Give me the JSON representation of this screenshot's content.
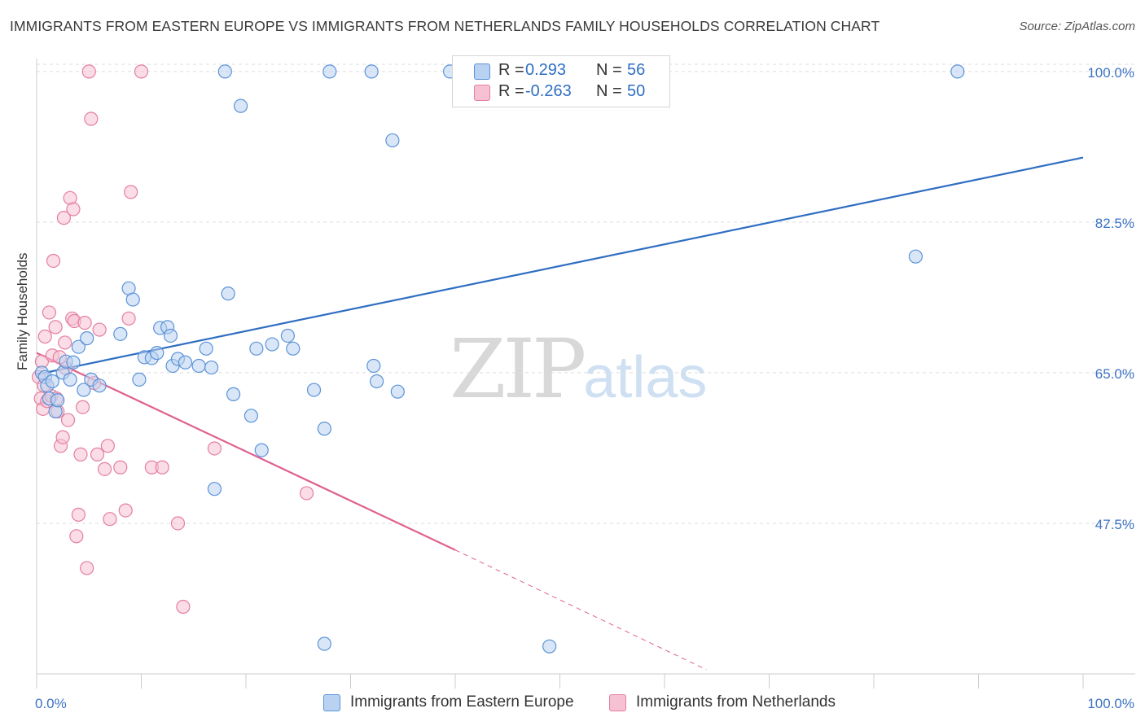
{
  "title": "IMMIGRANTS FROM EASTERN EUROPE VS IMMIGRANTS FROM NETHERLANDS FAMILY HOUSEHOLDS CORRELATION CHART",
  "source": "Source: ZipAtlas.com",
  "watermark": {
    "zip": "ZIP",
    "atlas": "atlas"
  },
  "legend": {
    "rows": [
      {
        "r_label": "R =",
        "r_value": "0.293",
        "n_label": "N =",
        "n_value": "56"
      },
      {
        "r_label": "R =",
        "r_value": "-0.263",
        "n_label": "N =",
        "n_value": "50"
      }
    ]
  },
  "colors": {
    "blue": "#5b93d8",
    "blue_fill": "#b9d2f1",
    "pink": "#e57ea0",
    "pink_fill": "#f6c1d2",
    "blue_line": "#2f6ec2",
    "pink_line": "#e0608f",
    "tick_text": "#3b72c4",
    "grid": "#dedede"
  },
  "chart_data": {
    "type": "scatter",
    "title": "IMMIGRANTS FROM EASTERN EUROPE VS IMMIGRANTS FROM NETHERLANDS FAMILY HOUSEHOLDS CORRELATION CHART",
    "xlabel": "",
    "ylabel": "Family Households",
    "xlim": [
      0,
      100
    ],
    "ylim": [
      30,
      101.5
    ],
    "x_tick_labels": [
      "0.0%",
      "100.0%"
    ],
    "y_ticks": [
      47.5,
      65.0,
      82.5,
      100.0
    ],
    "y_tick_labels": [
      "47.5%",
      "65.0%",
      "82.5%",
      "100.0%"
    ],
    "legend_position": "top-center",
    "series": [
      {
        "name": "Immigrants from Eastern Europe",
        "color": "blue",
        "R": 0.293,
        "N": 56,
        "trend": {
          "x": [
            0,
            100
          ],
          "y": [
            64.8,
            90.0
          ]
        },
        "points": [
          [
            0.5,
            65.0
          ],
          [
            0.8,
            64.5
          ],
          [
            1.0,
            63.5
          ],
          [
            1.2,
            62.0
          ],
          [
            1.5,
            64.0
          ],
          [
            1.8,
            60.5
          ],
          [
            2.0,
            61.8
          ],
          [
            2.5,
            65.0
          ],
          [
            2.8,
            66.3
          ],
          [
            3.2,
            64.2
          ],
          [
            3.5,
            66.2
          ],
          [
            4.0,
            68.0
          ],
          [
            4.5,
            63.0
          ],
          [
            4.8,
            69.0
          ],
          [
            5.2,
            64.2
          ],
          [
            6.0,
            63.5
          ],
          [
            8.0,
            69.5
          ],
          [
            8.8,
            74.8
          ],
          [
            9.2,
            73.5
          ],
          [
            9.8,
            64.2
          ],
          [
            10.3,
            66.8
          ],
          [
            11.0,
            66.7
          ],
          [
            11.5,
            67.3
          ],
          [
            11.8,
            70.2
          ],
          [
            12.5,
            70.3
          ],
          [
            12.8,
            69.3
          ],
          [
            13.0,
            65.8
          ],
          [
            13.5,
            66.6
          ],
          [
            14.2,
            66.2
          ],
          [
            15.5,
            65.8
          ],
          [
            16.2,
            67.8
          ],
          [
            16.7,
            65.6
          ],
          [
            17.0,
            51.5
          ],
          [
            18.0,
            100.0
          ],
          [
            18.3,
            74.2
          ],
          [
            18.8,
            62.5
          ],
          [
            19.5,
            96.0
          ],
          [
            20.5,
            60.0
          ],
          [
            21.0,
            67.8
          ],
          [
            21.5,
            56.0
          ],
          [
            22.5,
            68.3
          ],
          [
            24.0,
            69.3
          ],
          [
            24.5,
            67.8
          ],
          [
            26.5,
            63.0
          ],
          [
            27.5,
            58.5
          ],
          [
            27.5,
            33.5
          ],
          [
            28.0,
            100.0
          ],
          [
            32.0,
            100.0
          ],
          [
            32.2,
            65.8
          ],
          [
            32.5,
            64.0
          ],
          [
            34.0,
            92.0
          ],
          [
            34.5,
            62.8
          ],
          [
            39.5,
            100.0
          ],
          [
            49.0,
            33.2
          ],
          [
            84.0,
            78.5
          ],
          [
            88.0,
            100.0
          ]
        ]
      },
      {
        "name": "Immigrants from Netherlands",
        "color": "pink",
        "R": -0.263,
        "N": 50,
        "trend": {
          "x": [
            0,
            40
          ],
          "y": [
            67.3,
            44.4
          ]
        },
        "trend_dashed": {
          "x": [
            40,
            64
          ],
          "y": [
            44.4,
            30.5
          ]
        },
        "points": [
          [
            0.2,
            64.5
          ],
          [
            0.4,
            62.0
          ],
          [
            0.5,
            66.3
          ],
          [
            0.6,
            60.8
          ],
          [
            0.7,
            63.5
          ],
          [
            0.8,
            69.2
          ],
          [
            1.0,
            61.7
          ],
          [
            1.2,
            72.0
          ],
          [
            1.4,
            62.3
          ],
          [
            1.5,
            67.0
          ],
          [
            1.6,
            78.0
          ],
          [
            1.8,
            70.3
          ],
          [
            1.9,
            62.0
          ],
          [
            2.0,
            60.5
          ],
          [
            2.2,
            66.8
          ],
          [
            2.3,
            56.5
          ],
          [
            2.5,
            57.5
          ],
          [
            2.6,
            83.0
          ],
          [
            2.7,
            68.5
          ],
          [
            2.8,
            65.5
          ],
          [
            3.0,
            59.5
          ],
          [
            3.2,
            85.3
          ],
          [
            3.4,
            71.3
          ],
          [
            3.5,
            84.0
          ],
          [
            3.6,
            71.0
          ],
          [
            3.8,
            46.0
          ],
          [
            4.0,
            48.5
          ],
          [
            4.2,
            55.5
          ],
          [
            4.4,
            61.0
          ],
          [
            4.6,
            70.8
          ],
          [
            4.8,
            42.3
          ],
          [
            5.0,
            100.0
          ],
          [
            5.2,
            94.5
          ],
          [
            5.5,
            63.8
          ],
          [
            5.8,
            55.5
          ],
          [
            6.0,
            70.0
          ],
          [
            6.5,
            53.8
          ],
          [
            6.8,
            56.5
          ],
          [
            7.0,
            48.0
          ],
          [
            8.0,
            54.0
          ],
          [
            8.5,
            49.0
          ],
          [
            8.8,
            71.3
          ],
          [
            9.0,
            86.0
          ],
          [
            10.0,
            100.0
          ],
          [
            11.0,
            54.0
          ],
          [
            12.0,
            54.0
          ],
          [
            13.5,
            47.5
          ],
          [
            14.0,
            37.8
          ],
          [
            17.0,
            56.2
          ],
          [
            25.8,
            51.0
          ]
        ]
      }
    ]
  },
  "bottom_legend": [
    {
      "label": "Immigrants from Eastern Europe"
    },
    {
      "label": "Immigrants from Netherlands"
    }
  ]
}
